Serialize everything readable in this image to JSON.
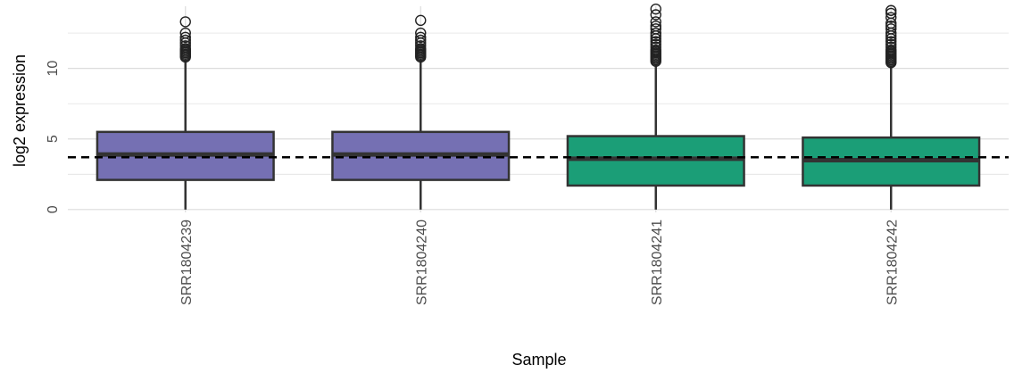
{
  "chart_data": {
    "type": "box",
    "xlabel": "Sample",
    "ylabel": "log2 expression",
    "y_ticks": [
      0,
      5,
      10
    ],
    "ylim": [
      -0.2,
      14.4
    ],
    "grid": true,
    "reference_line": {
      "y": 3.7,
      "style": "dashed"
    },
    "colors": {
      "group1": "#7570b3",
      "group2": "#1b9e77",
      "outline": "#333333",
      "grid": "#dcdcdc"
    },
    "boxes": [
      {
        "name": "SRR1804239",
        "color": "#7570b3",
        "min": 0,
        "q1": 2.1,
        "median": 3.9,
        "q3": 5.5,
        "whisker_high": 10.6,
        "outliers": [
          10.8,
          10.9,
          11.0,
          11.1,
          11.2,
          11.3,
          11.4,
          11.6,
          11.8,
          12.0,
          12.2,
          12.5,
          13.3
        ]
      },
      {
        "name": "SRR1804240",
        "color": "#7570b3",
        "min": 0,
        "q1": 2.1,
        "median": 3.9,
        "q3": 5.5,
        "whisker_high": 10.6,
        "outliers": [
          10.8,
          10.9,
          11.0,
          11.1,
          11.2,
          11.3,
          11.4,
          11.6,
          11.8,
          12.0,
          12.2,
          12.5,
          13.4
        ]
      },
      {
        "name": "SRR1804241",
        "color": "#1b9e77",
        "min": 0,
        "q1": 1.7,
        "median": 3.6,
        "q3": 5.2,
        "whisker_high": 10.3,
        "outliers": [
          10.5,
          10.6,
          10.7,
          10.8,
          10.9,
          11.0,
          11.1,
          11.2,
          11.3,
          11.5,
          11.7,
          11.9,
          12.1,
          12.3,
          12.5,
          12.8,
          13.0,
          13.3,
          13.8,
          14.2
        ]
      },
      {
        "name": "SRR1804242",
        "color": "#1b9e77",
        "min": 0,
        "q1": 1.7,
        "median": 3.5,
        "q3": 5.1,
        "whisker_high": 10.2,
        "outliers": [
          10.4,
          10.5,
          10.6,
          10.7,
          10.8,
          10.9,
          11.0,
          11.1,
          11.2,
          11.3,
          11.5,
          11.7,
          11.9,
          12.1,
          12.3,
          12.5,
          12.8,
          13.0,
          13.2,
          13.6,
          13.9,
          14.1
        ]
      }
    ]
  }
}
